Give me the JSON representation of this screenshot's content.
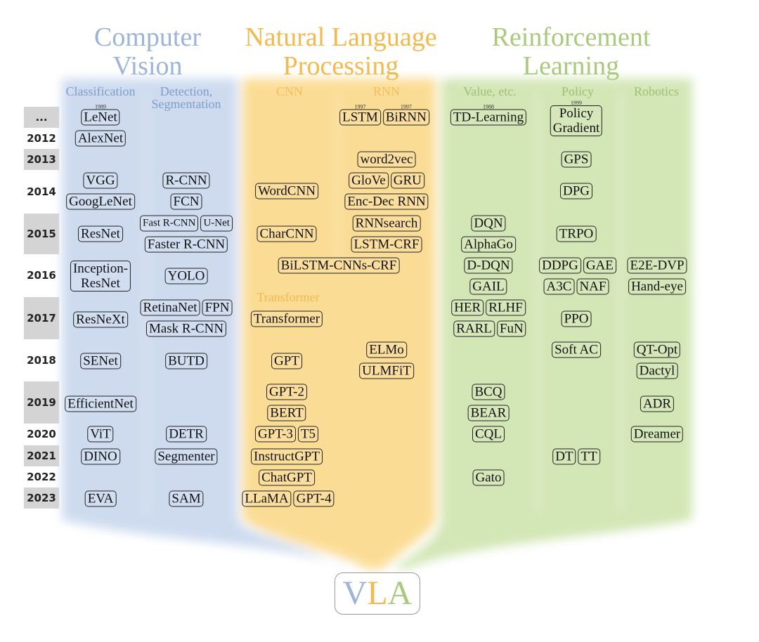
{
  "titles": {
    "cv": [
      "Computer",
      "Vision"
    ],
    "nlp": [
      "Natural Language",
      "Processing"
    ],
    "rl": [
      "Reinforcement",
      "Learning"
    ]
  },
  "colors": {
    "cv": "#9cb4d8",
    "nlp": "#f2b94e",
    "rl": "#a9c97c",
    "cv_bg": "#c9d8ee",
    "nlp_bg": "#fbd98a",
    "rl_bg": "#cfe4ae"
  },
  "column_headers": {
    "classification": "Classification",
    "detection": [
      "Detection,",
      "Segmentation"
    ],
    "cnn": "CNN",
    "rnn": "RNN",
    "transformer": "Transformer",
    "value": "Value, etc.",
    "policy": "Policy",
    "robotics": "Robotics"
  },
  "years": [
    "...",
    "2012",
    "2013",
    "2014",
    "2015",
    "2016",
    "2017",
    "2018",
    "2019",
    "2020",
    "2021",
    "2022",
    "2023"
  ],
  "nodes": [
    {
      "label": "LeNet",
      "year_note": "1989"
    },
    {
      "label": "AlexNet"
    },
    {
      "label": "VGG"
    },
    {
      "label": "GoogLeNet"
    },
    {
      "label": "ResNet"
    },
    {
      "label": "Inception-\nResNet"
    },
    {
      "label": "ResNeXt"
    },
    {
      "label": "SENet"
    },
    {
      "label": "EfficientNet"
    },
    {
      "label": "ViT"
    },
    {
      "label": "DINO"
    },
    {
      "label": "EVA"
    },
    {
      "label": "R-CNN"
    },
    {
      "label": "FCN"
    },
    {
      "label": "Fast R-CNN"
    },
    {
      "label": "U-Net"
    },
    {
      "label": "Faster R-CNN"
    },
    {
      "label": "YOLO"
    },
    {
      "label": "RetinaNet"
    },
    {
      "label": "FPN"
    },
    {
      "label": "Mask R-CNN"
    },
    {
      "label": "BUTD"
    },
    {
      "label": "DETR"
    },
    {
      "label": "Segmenter"
    },
    {
      "label": "SAM"
    },
    {
      "label": "WordCNN"
    },
    {
      "label": "CharCNN"
    },
    {
      "label": "LSTM",
      "year_note": "1997"
    },
    {
      "label": "BiRNN",
      "year_note": "1997"
    },
    {
      "label": "word2vec"
    },
    {
      "label": "GloVe"
    },
    {
      "label": "GRU"
    },
    {
      "label": "Enc-Dec RNN"
    },
    {
      "label": "RNNsearch"
    },
    {
      "label": "LSTM-CRF"
    },
    {
      "label": "BiLSTM-CNNs-CRF"
    },
    {
      "label": "Transformer"
    },
    {
      "label": "GPT"
    },
    {
      "label": "GPT-2"
    },
    {
      "label": "BERT"
    },
    {
      "label": "GPT-3"
    },
    {
      "label": "T5"
    },
    {
      "label": "InstructGPT"
    },
    {
      "label": "ChatGPT"
    },
    {
      "label": "LLaMA"
    },
    {
      "label": "GPT-4"
    },
    {
      "label": "ELMo"
    },
    {
      "label": "ULMFiT"
    },
    {
      "label": "TD-Learning",
      "year_note": "1988"
    },
    {
      "label": "DQN"
    },
    {
      "label": "AlphaGo"
    },
    {
      "label": "D-DQN"
    },
    {
      "label": "GAIL"
    },
    {
      "label": "HER"
    },
    {
      "label": "RLHF"
    },
    {
      "label": "RARL"
    },
    {
      "label": "FuN"
    },
    {
      "label": "BCQ"
    },
    {
      "label": "BEAR"
    },
    {
      "label": "CQL"
    },
    {
      "label": "Gato"
    },
    {
      "label": "Policy\nGradient",
      "year_note": "1999"
    },
    {
      "label": "GPS"
    },
    {
      "label": "DPG"
    },
    {
      "label": "TRPO"
    },
    {
      "label": "DDPG"
    },
    {
      "label": "GAE"
    },
    {
      "label": "A3C"
    },
    {
      "label": "NAF"
    },
    {
      "label": "PPO"
    },
    {
      "label": "Soft AC"
    },
    {
      "label": "DT"
    },
    {
      "label": "TT"
    },
    {
      "label": "E2E-DVP"
    },
    {
      "label": "Hand-eye"
    },
    {
      "label": "QT-Opt"
    },
    {
      "label": "Dactyl"
    },
    {
      "label": "ADR"
    },
    {
      "label": "Dreamer"
    }
  ],
  "vla": {
    "v": "V",
    "l": "L",
    "a": "A"
  }
}
